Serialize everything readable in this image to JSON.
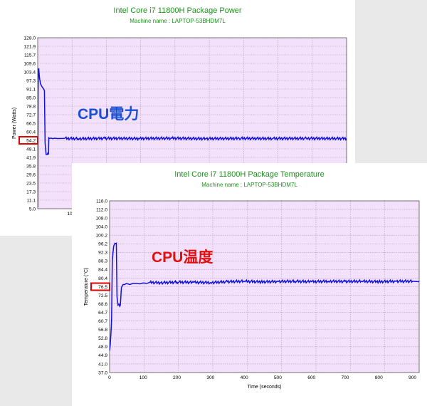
{
  "colors": {
    "title": "#1f8f1f",
    "plot_bg": "#f3e1fb",
    "grid": "#a99aa9",
    "series": "#1010e0",
    "highlight": "#e00000"
  },
  "chart_data": [
    {
      "type": "line",
      "title": "Intel Core i7 11800H Package Power",
      "subtitle": "Machine name : LAPTOP-53BHDM7L",
      "xlabel": "",
      "ylabel": "Power (Watts)",
      "ylim": [
        5.0,
        128.0
      ],
      "xlim": [
        0,
        920
      ],
      "y_ticks": [
        "128.0",
        "121.9",
        "115.7",
        "109.6",
        "103.4",
        "97.3",
        "91.1",
        "85.0",
        "78.8",
        "72.7",
        "66.5",
        "60.4",
        "54.2",
        "48.1",
        "41.9",
        "35.8",
        "29.6",
        "23.5",
        "17.3",
        "11.1",
        "5.0"
      ],
      "x_ticks": [
        "10"
      ],
      "highlighted_tick": "54.2",
      "annotation": "CPU電力",
      "annotation_color": "#1b4fd6",
      "grid": true,
      "series": [
        {
          "x": [
            0,
            1,
            2,
            3,
            4,
            5,
            6,
            7,
            8,
            10,
            12,
            15,
            18,
            20,
            22,
            25,
            28,
            30,
            32,
            33,
            35,
            40,
            45,
            50,
            60,
            80,
            120,
            200,
            300,
            400,
            500,
            600,
            700,
            800,
            920
          ],
          "y": [
            6,
            88,
            104,
            106,
            103,
            100,
            98,
            97,
            95,
            94,
            93,
            92,
            91,
            90,
            52,
            44,
            44,
            45,
            44,
            56,
            55.5,
            55.8,
            55.4,
            55.7,
            55.5,
            55.6,
            55.4,
            55.6,
            55.5,
            55.7,
            55.4,
            55.6,
            55.5,
            55.6,
            55.5
          ]
        }
      ]
    },
    {
      "type": "line",
      "title": "Intel Core i7 11800H Package Temperature",
      "subtitle": "Machine name : LAPTOP-53BHDM7L",
      "xlabel": "Time (seconds)",
      "ylabel": "Temperature (°C)",
      "ylim": [
        37.0,
        116.0
      ],
      "xlim": [
        0,
        920
      ],
      "y_ticks": [
        "116.0",
        "112.0",
        "108.0",
        "104.0",
        "100.2",
        "96.2",
        "92.3",
        "88.3",
        "84.4",
        "80.4",
        "76.5",
        "72.5",
        "68.6",
        "64.7",
        "60.7",
        "56.8",
        "52.8",
        "48.9",
        "44.9",
        "41.0",
        "37.0"
      ],
      "x_ticks": [
        "0",
        "100",
        "200",
        "300",
        "400",
        "500",
        "600",
        "700",
        "800",
        "900"
      ],
      "highlighted_tick": "76.5",
      "annotation": "CPU温度",
      "annotation_color": "#e01010",
      "grid": true,
      "series": [
        {
          "x": [
            0,
            2,
            4,
            5,
            6,
            7,
            8,
            10,
            12,
            14,
            16,
            18,
            20,
            22,
            25,
            28,
            30,
            32,
            35,
            38,
            40,
            45,
            50,
            60,
            70,
            80,
            90,
            100,
            110,
            120,
            150,
            200,
            250,
            300,
            350,
            400,
            450,
            500,
            550,
            600,
            650,
            700,
            750,
            800,
            850,
            900,
            920
          ],
          "y": [
            47,
            50,
            55,
            58,
            62,
            75,
            88,
            92,
            95,
            96,
            96.5,
            96.3,
            96.5,
            72,
            68,
            68.5,
            67.5,
            68,
            76,
            77,
            77.5,
            77.5,
            78,
            77.5,
            78,
            78,
            77.8,
            78.2,
            78,
            78.5,
            78.3,
            78.6,
            78.5,
            78.4,
            78.8,
            79,
            78.7,
            78.9,
            79,
            78.8,
            79,
            78.9,
            79,
            78.8,
            79,
            79,
            78.8
          ]
        }
      ]
    }
  ]
}
